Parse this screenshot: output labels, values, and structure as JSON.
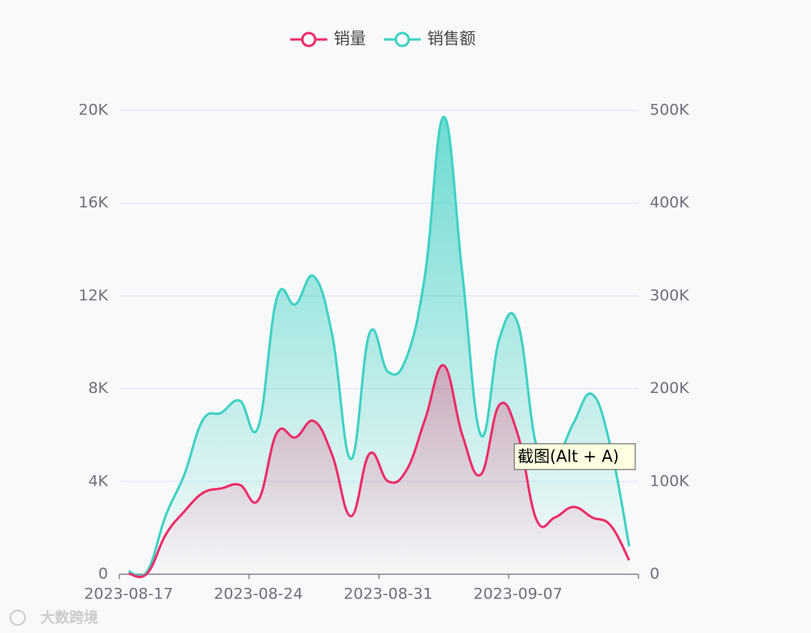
{
  "chart_data": {
    "type": "line",
    "categories": [
      "2023-08-17",
      null,
      null,
      null,
      null,
      null,
      null,
      "2023-08-24",
      null,
      null,
      null,
      null,
      null,
      null,
      "2023-08-31",
      null,
      null,
      null,
      null,
      null,
      null,
      "2023-09-07",
      null,
      null,
      null,
      null,
      null,
      null
    ],
    "series": [
      {
        "name": "销量",
        "color": "#ec2d6a",
        "values": [
          20,
          30,
          1700,
          2700,
          3500,
          3700,
          3850,
          3200,
          6100,
          5900,
          6600,
          5100,
          2500,
          5200,
          4000,
          4500,
          6700,
          9000,
          6000,
          4300,
          7300,
          6000,
          2350,
          2450,
          2900,
          2450,
          2100,
          600
        ]
      },
      {
        "name": "销售额",
        "color": "#3fd1c3",
        "axis": "y2",
        "values": [
          3000,
          3000,
          63000,
          107000,
          166000,
          174000,
          187000,
          159000,
          298000,
          291000,
          321000,
          256000,
          124000,
          260000,
          218000,
          234000,
          324000,
          493000,
          324000,
          150000,
          254000,
          270000,
          138000,
          124000,
          163000,
          194000,
          137000,
          30000
        ]
      }
    ],
    "ylim": [
      0,
      20000
    ],
    "yticks": [
      0,
      {
        "value": 4000,
        "label": "4K"
      },
      {
        "value": 8000,
        "label": "8K"
      },
      {
        "value": 12000,
        "label": "12K"
      },
      {
        "value": 16000,
        "label": "16K"
      },
      {
        "value": 20000,
        "label": "20K"
      }
    ],
    "y2lim": [
      0,
      500000
    ],
    "y2ticks": [
      0,
      {
        "value": 100000,
        "label": "100K"
      },
      {
        "value": 200000,
        "label": "200K"
      },
      {
        "value": 300000,
        "label": "300K"
      },
      {
        "value": 400000,
        "label": "400K"
      },
      {
        "value": 500000,
        "label": "500K"
      }
    ],
    "grid": true,
    "legend": "top",
    "annotations": [
      "截图(Alt + A)",
      "大数跨境"
    ]
  }
}
